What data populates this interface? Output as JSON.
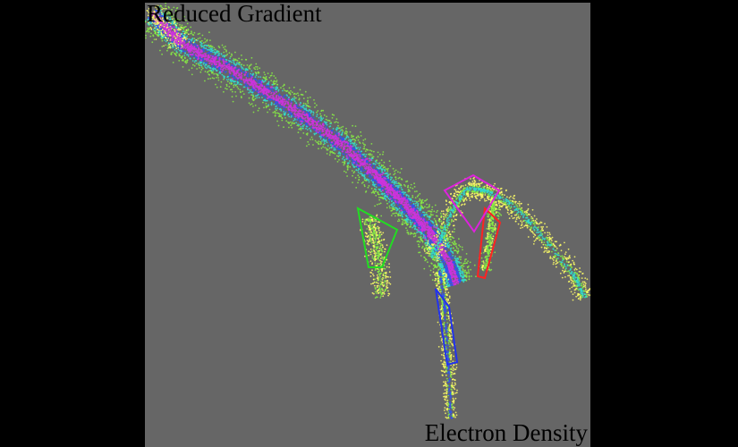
{
  "chart_data": {
    "type": "scatter",
    "xlabel": "Electron Density",
    "ylabel": "Reduced Gradient",
    "background": "#666666",
    "series_colors": [
      "#ffff66",
      "#88ee44",
      "#33ddcc",
      "#3355ee",
      "#cc33dd"
    ],
    "ranges": [
      "#22dd22",
      "#ff2222",
      "#dd22dd",
      "#2233ee"
    ]
  }
}
